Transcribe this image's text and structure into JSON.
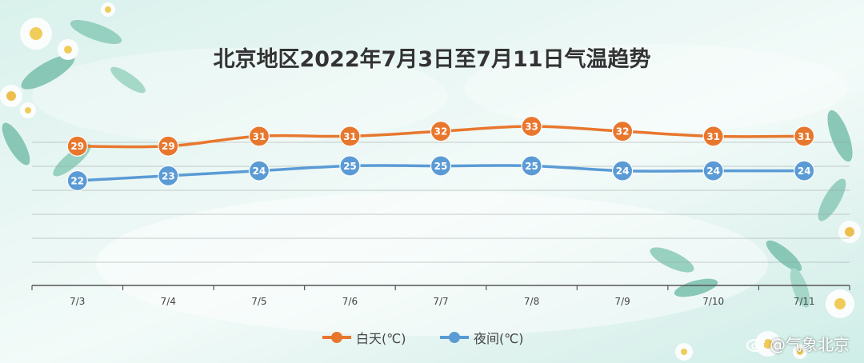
{
  "title": "北京地区2022年7月3日至7月11日气温趋势",
  "watermark": "@气象北京",
  "colors": {
    "day": "#E8772E",
    "night": "#5B9BD5"
  },
  "chart_data": {
    "type": "line",
    "title": "北京地区2022年7月3日至7月11日气温趋势",
    "categories": [
      "7/3",
      "7/4",
      "7/5",
      "7/6",
      "7/7",
      "7/8",
      "7/9",
      "7/10",
      "7/11"
    ],
    "series": [
      {
        "name": "白天(℃)",
        "values": [
          29,
          29,
          31,
          31,
          32,
          33,
          32,
          31,
          31
        ]
      },
      {
        "name": "夜间(℃)",
        "values": [
          22,
          23,
          24,
          25,
          25,
          25,
          24,
          24,
          24
        ]
      }
    ],
    "grid": true,
    "legend": "bottom",
    "data_labels": true
  }
}
